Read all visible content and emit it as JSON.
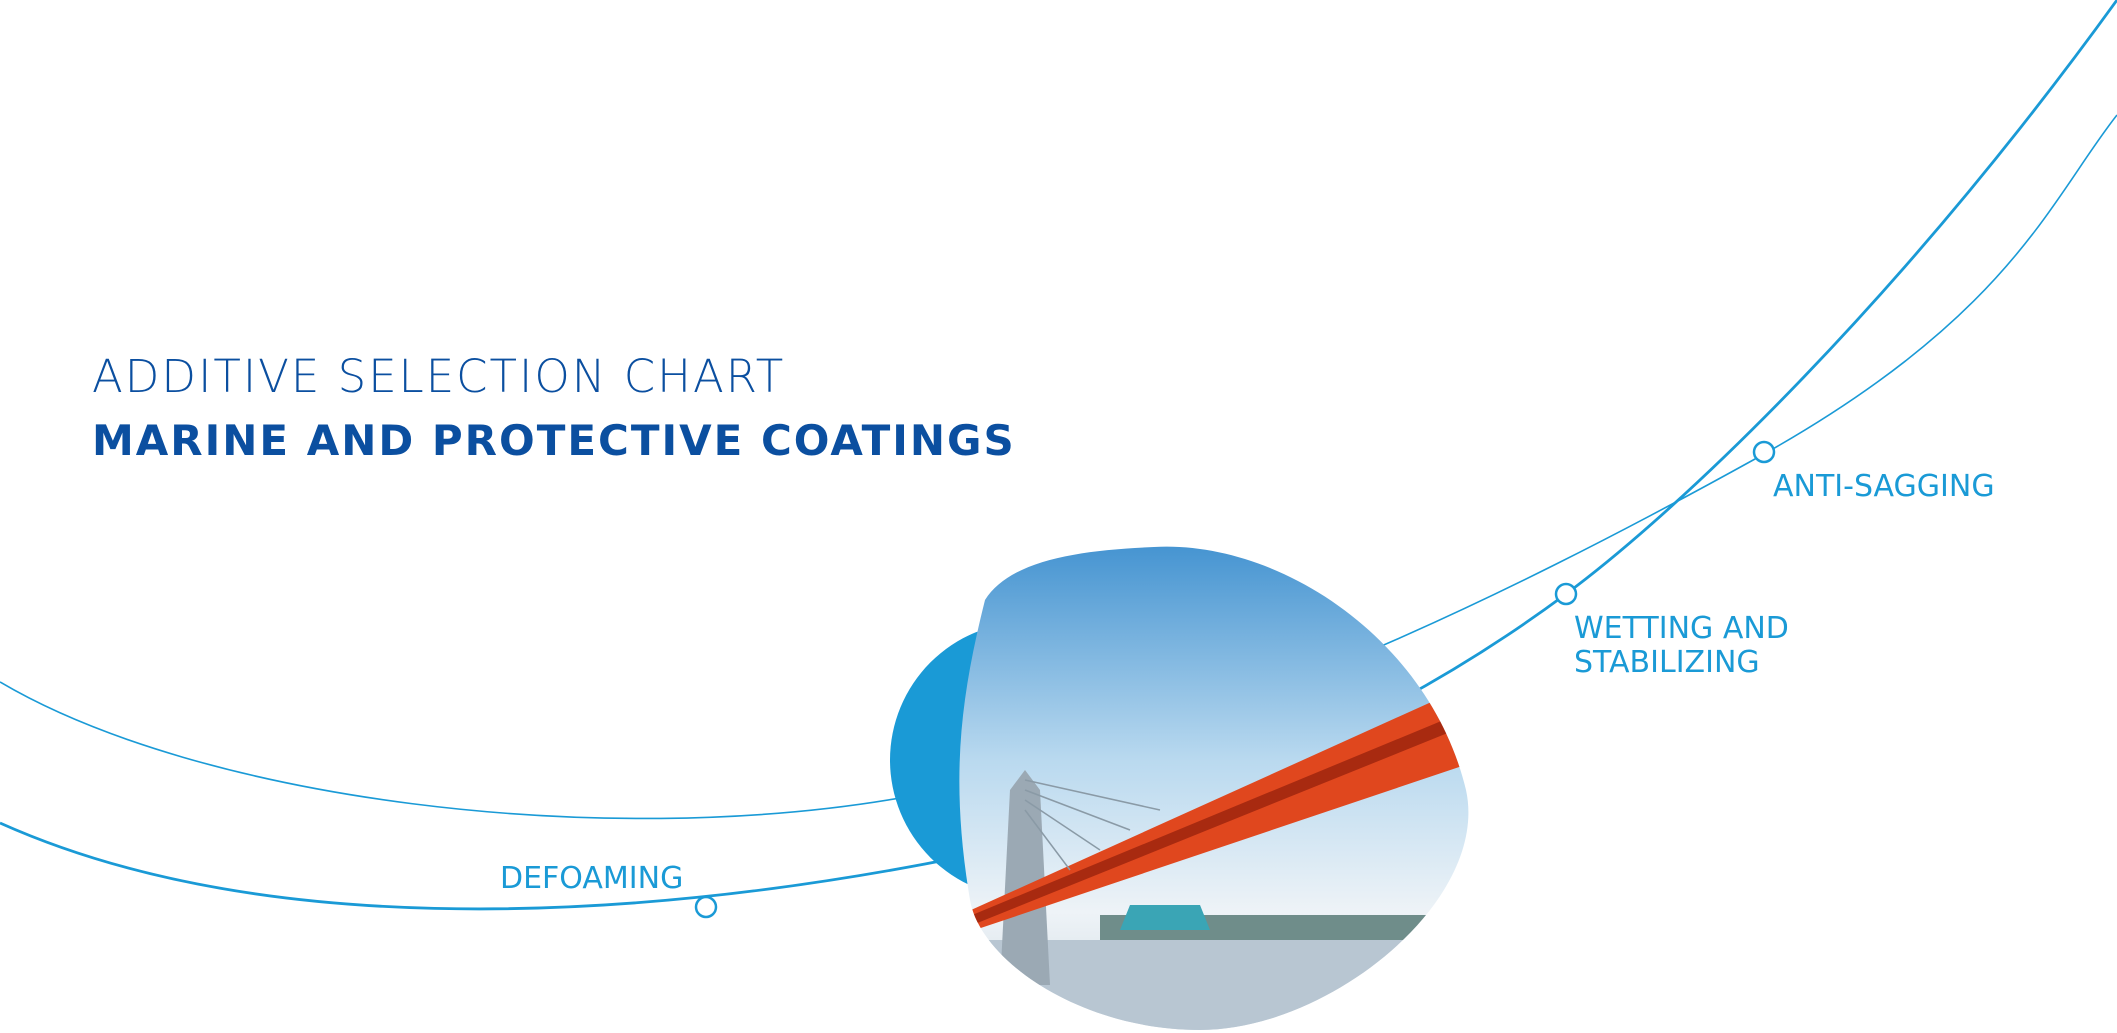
{
  "header": {
    "title": "ADDITIVE SELECTION CHART",
    "subtitle": "MARINE AND PROTECTIVE COATINGS"
  },
  "labels": [
    {
      "lines": [
        "DEFOAMING"
      ]
    },
    {
      "lines": [
        "WETTING AND",
        "STABILIZING"
      ]
    },
    {
      "lines": [
        "ANTI-SAGGING"
      ]
    }
  ]
}
